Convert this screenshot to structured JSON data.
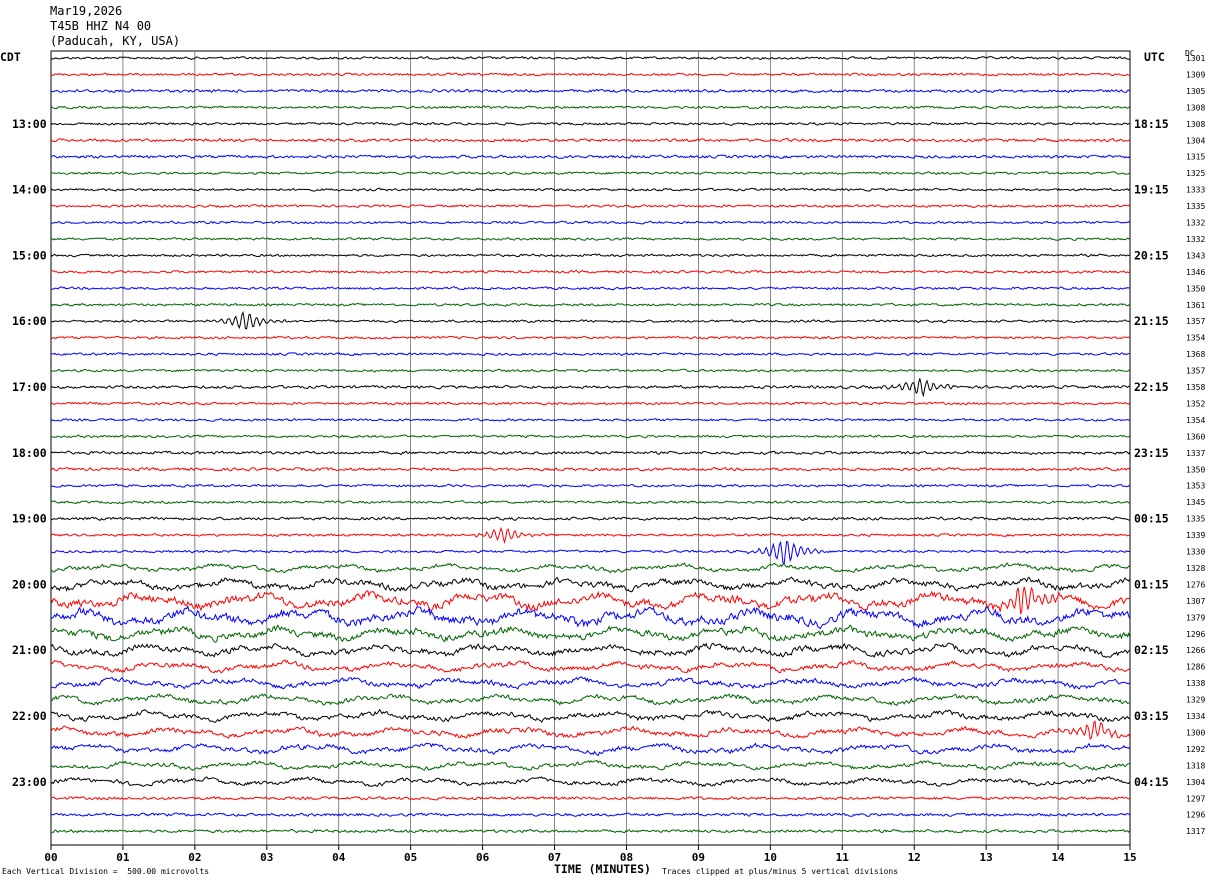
{
  "header": {
    "date": "Mar19,2026",
    "station": "T45B HHZ N4 00",
    "location": "(Paducah, KY, USA)"
  },
  "labels": {
    "left_zone": "CDT",
    "right_zone": "UTC",
    "dc_header": "DC",
    "x_axis": "TIME (MINUTES)",
    "scale_note": "Each Vertical Division =  500.00 microvolts",
    "clip_note": "Traces clipped at plus/minus 5 vertical divisions"
  },
  "chart_data": {
    "type": "line",
    "title": "T45B HHZ N4 00 (Paducah, KY, USA)",
    "xlabel": "TIME (MINUTES)",
    "xlim": [
      0,
      15
    ],
    "x_ticks": [
      "00",
      "01",
      "02",
      "03",
      "04",
      "05",
      "06",
      "07",
      "08",
      "09",
      "10",
      "11",
      "12",
      "13",
      "14",
      "15"
    ],
    "left_hour_labels": [
      "13:00",
      "14:00",
      "15:00",
      "16:00",
      "17:00",
      "18:00",
      "19:00",
      "20:00",
      "21:00",
      "22:00",
      "23:00"
    ],
    "right_hour_labels": [
      "18:15",
      "19:15",
      "20:15",
      "21:15",
      "22:15",
      "23:15",
      "00:15",
      "01:15",
      "02:15",
      "03:15",
      "04:15"
    ],
    "first_label_row": 4,
    "trace_colors": [
      "#000000",
      "#ff0000",
      "#0000ff",
      "#006400"
    ],
    "dc_offsets": [
      1301,
      1309,
      1305,
      1308,
      1308,
      1304,
      1315,
      1325,
      1333,
      1335,
      1332,
      1332,
      1343,
      1346,
      1350,
      1361,
      1357,
      1354,
      1368,
      1357,
      1358,
      1352,
      1354,
      1360,
      1337,
      1350,
      1353,
      1345,
      1335,
      1339,
      1330,
      1328,
      1276,
      1307,
      1379,
      1296,
      1266,
      1286,
      1338,
      1329,
      1334,
      1300,
      1292,
      1318,
      1304,
      1297,
      1296,
      1317
    ],
    "row_amplitude": [
      2.5,
      2.5,
      3,
      2.5,
      2.5,
      3,
      3,
      2.5,
      2.5,
      2.5,
      2.5,
      2.5,
      2.5,
      2.5,
      2.5,
      2.5,
      2.5,
      2.5,
      2.5,
      2.5,
      3,
      2.5,
      2.5,
      2.5,
      3,
      3,
      2.5,
      2.5,
      3,
      2.5,
      2.5,
      4,
      6,
      8,
      9,
      7,
      6,
      5,
      5,
      5,
      5,
      5,
      5,
      4,
      4,
      3,
      3,
      3
    ],
    "events": [
      {
        "row": 16,
        "minute": 2.7,
        "amp": 10
      },
      {
        "row": 20,
        "minute": 12.1,
        "amp": 9
      },
      {
        "row": 29,
        "minute": 6.3,
        "amp": 8
      },
      {
        "row": 30,
        "minute": 10.2,
        "amp": 14
      },
      {
        "row": 33,
        "minute": 13.5,
        "amp": 16
      },
      {
        "row": 41,
        "minute": 14.5,
        "amp": 10
      }
    ],
    "minutes_per_row": 15,
    "grid": true
  }
}
